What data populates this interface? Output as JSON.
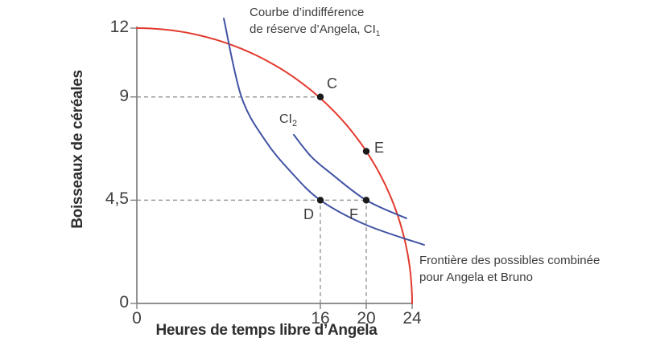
{
  "colors": {
    "frontier": "#e23a2e",
    "indifference": "#4153a4",
    "dashed": "#9b9b9b",
    "axis": "#7f7f7f",
    "point": "#1b1b1b",
    "text": "#3d3d3d"
  },
  "annotations": {
    "ci1": {
      "line1": "Courbe d’indifférence",
      "line2": "de réserve d’Angela, CI",
      "sub": "1"
    },
    "ci2": {
      "text": "CI",
      "sub": "2"
    },
    "frontier": {
      "line1": "Frontière des possibles combinée",
      "line2": "pour Angela et Bruno"
    }
  },
  "chart_data": {
    "type": "line",
    "title": "",
    "xlabel": "Heures de temps libre d’Angela",
    "ylabel": "Boisseaux de céréales",
    "xlim": [
      0,
      24
    ],
    "ylim": [
      0,
      12
    ],
    "grid": false,
    "legend_position": "none",
    "x_ticks": [
      {
        "value": 0,
        "label": "0"
      },
      {
        "value": 16,
        "label": "16"
      },
      {
        "value": 20,
        "label": "20"
      },
      {
        "value": 24,
        "label": "24"
      }
    ],
    "y_ticks": [
      {
        "value": 0,
        "label": "0"
      },
      {
        "value": 4.5,
        "label": "4,5"
      },
      {
        "value": 9,
        "label": "9"
      },
      {
        "value": 12,
        "label": "12"
      }
    ],
    "series": [
      {
        "name": "Frontière des possibles combinée pour Angela et Bruno",
        "shape": "ellipse_quadrant",
        "x_intercept": 24,
        "y_intercept": 12,
        "color_key": "frontier",
        "key_points": [
          [
            0,
            12
          ],
          [
            16,
            9
          ],
          [
            20,
            6.63
          ],
          [
            24,
            0
          ]
        ]
      },
      {
        "name": "Courbe d’indifférence de réserve d’Angela, CI1",
        "shape": "smooth_points",
        "color_key": "indifference",
        "points": [
          [
            7.58,
            12.42
          ],
          [
            9.12,
            9.0
          ],
          [
            11.2,
            7.1
          ],
          [
            13.4,
            5.75
          ],
          [
            16,
            4.5
          ],
          [
            20,
            3.42
          ],
          [
            25.05,
            2.55
          ]
        ]
      },
      {
        "name": "CI2",
        "shape": "smooth_points",
        "color_key": "indifference",
        "points": [
          [
            13.68,
            7.35
          ],
          [
            15.2,
            6.4
          ],
          [
            16.84,
            5.7
          ],
          [
            20,
            4.5
          ],
          [
            23.5,
            3.71
          ]
        ]
      }
    ],
    "points": [
      {
        "label": "C",
        "x": 16,
        "y": 9
      },
      {
        "label": "E",
        "x": 20,
        "y": 6.63
      },
      {
        "label": "D",
        "x": 16,
        "y": 4.5
      },
      {
        "label": "F",
        "x": 20,
        "y": 4.5
      }
    ],
    "guides": [
      {
        "type": "h",
        "y": 9,
        "x0": 0,
        "x1": 16
      },
      {
        "type": "h",
        "y": 4.5,
        "x0": 0,
        "x1": 20
      },
      {
        "type": "v",
        "x": 16,
        "y0": 0,
        "y1": 4.5
      },
      {
        "type": "v",
        "x": 20,
        "y0": 0,
        "y1": 4.5
      }
    ]
  }
}
